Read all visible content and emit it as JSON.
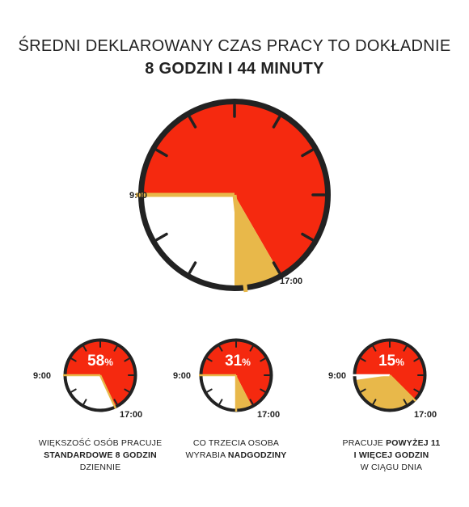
{
  "title": {
    "line1": "ŚREDNI DEKLAROWANY CZAS PRACY TO DOKŁADNIE",
    "line2": "8 GODZIN I 44 MINUTY"
  },
  "colors": {
    "red": "#f5290f",
    "gold": "#e8b84a",
    "dark": "#222222",
    "white": "#ffffff"
  },
  "main_clock": {
    "start_label": "9:00",
    "end_label": "17:00"
  },
  "small_clocks": [
    {
      "percent_value": "58",
      "percent_sign": "%",
      "start_label": "9:00",
      "end_label": "17:00",
      "caption": {
        "line1": "WIĘKSZOŚĆ OSÓB PRACUJE",
        "line2_bold": "STANDARDOWE 8 GODZIN",
        "line3": "DZIENNIE"
      }
    },
    {
      "percent_value": "31",
      "percent_sign": "%",
      "start_label": "9:00",
      "end_label": "17:00",
      "caption": {
        "line1": "CO TRZECIA OSOBA",
        "line2_pre": "WYRABIA ",
        "line2_bold": "NADGODZINY"
      }
    },
    {
      "percent_value": "15",
      "percent_sign": "%",
      "start_label": "9:00",
      "end_label": "17:00",
      "caption": {
        "line1_pre": "PRACUJE ",
        "line1_bold": "POWYŻEJ 11",
        "line2_bold": "I WIĘCEJ GODZIN",
        "line3": "W CIĄGU DNIA"
      }
    }
  ]
}
